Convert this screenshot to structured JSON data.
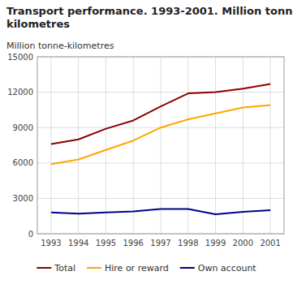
{
  "chart_data": {
    "type": "line",
    "title": "Transport performance. 1993-2001. Million tonne-\nkilometres",
    "y_label": "Million tonne-kilometres",
    "x": [
      1993,
      1994,
      1995,
      1996,
      1997,
      1998,
      1999,
      2000,
      2001
    ],
    "series": [
      {
        "name": "Total",
        "color": "#8B0000",
        "values": [
          7600,
          8000,
          8900,
          9600,
          10800,
          11900,
          12000,
          12300,
          12700
        ]
      },
      {
        "name": "Hire or reward",
        "color": "#FFA500",
        "values": [
          5900,
          6300,
          7100,
          7900,
          9000,
          9700,
          10200,
          10700,
          10900
        ]
      },
      {
        "name": "Own account",
        "color": "#00008B",
        "values": [
          1800,
          1700,
          1800,
          1900,
          2100,
          2100,
          1650,
          1850,
          2000
        ]
      }
    ],
    "xlim": [
      1992.5,
      2001.5
    ],
    "xticks": [
      1993,
      1994,
      1995,
      1996,
      1997,
      1998,
      1999,
      2000,
      2001
    ],
    "ylim": [
      0,
      15000
    ],
    "yticks": [
      0,
      3000,
      6000,
      9000,
      12000,
      15000
    ],
    "grid": true,
    "legend": "bottom"
  }
}
